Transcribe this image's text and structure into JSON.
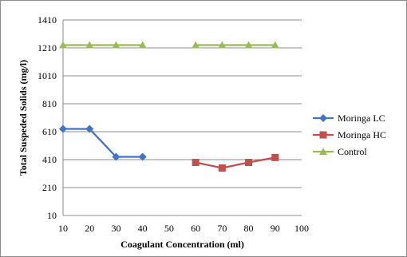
{
  "chart_data": {
    "type": "line",
    "title": "",
    "xlabel": "Coagulant Concentration (ml)",
    "ylabel": "Total Suspeded Solids (mg/l)",
    "x_ticks": [
      "10",
      "20",
      "30",
      "40",
      "50",
      "60",
      "70",
      "80",
      "90",
      "100"
    ],
    "y_ticks": [
      "10",
      "210",
      "410",
      "610",
      "810",
      "1010",
      "1210",
      "1410"
    ],
    "xlim": [
      10,
      100
    ],
    "ylim": [
      10,
      1410
    ],
    "grid": "horizontal",
    "legend_position": "right",
    "series": [
      {
        "name": "Moringa LC",
        "color": "#4472c4",
        "marker": "diamond",
        "points": [
          [
            10,
            630
          ],
          [
            20,
            630
          ],
          [
            30,
            430
          ],
          [
            40,
            430
          ]
        ]
      },
      {
        "name": "Moringa HC",
        "color": "#c0504d",
        "marker": "square",
        "points": [
          [
            60,
            390
          ],
          [
            70,
            350
          ],
          [
            80,
            390
          ],
          [
            90,
            425
          ]
        ]
      },
      {
        "name": "Control",
        "color": "#9bbb59",
        "marker": "triangle",
        "points": [
          [
            10,
            1230
          ],
          [
            20,
            1230
          ],
          [
            30,
            1230
          ],
          [
            40,
            1230
          ],
          [
            60,
            1230
          ],
          [
            70,
            1230
          ],
          [
            80,
            1230
          ],
          [
            90,
            1230
          ]
        ]
      }
    ]
  }
}
